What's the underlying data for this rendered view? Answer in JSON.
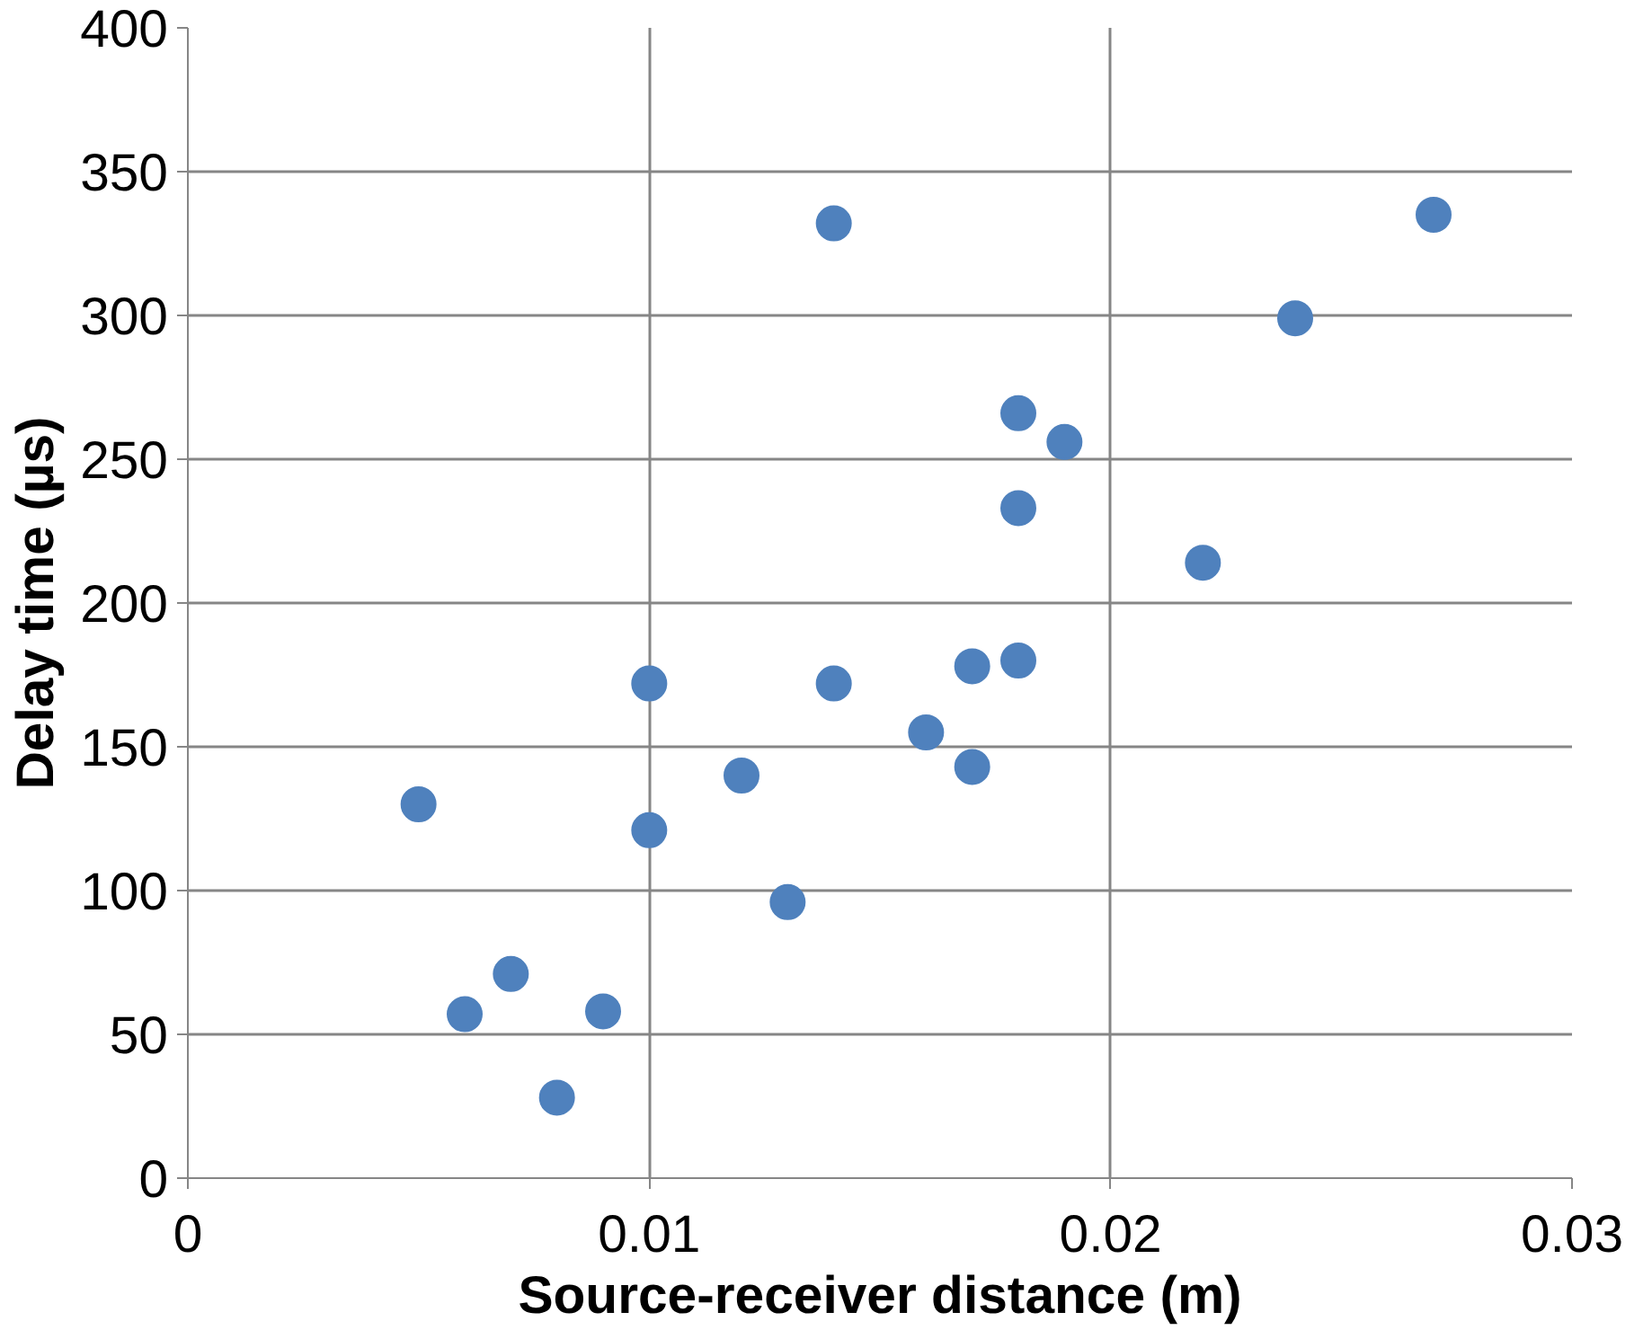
{
  "chart_data": {
    "type": "scatter",
    "xlabel": "Source-receiver distance (m)",
    "ylabel": "Delay time (µs)",
    "x": [
      0.005,
      0.006,
      0.007,
      0.008,
      0.009,
      0.01,
      0.01,
      0.012,
      0.013,
      0.014,
      0.014,
      0.016,
      0.017,
      0.017,
      0.018,
      0.018,
      0.018,
      0.019,
      0.022,
      0.024,
      0.027
    ],
    "series": [
      {
        "color": "#4f81bd",
        "values": [
          130,
          57,
          71,
          28,
          58,
          172,
          121,
          140,
          96,
          332,
          172,
          155,
          178,
          143,
          266,
          233,
          180,
          256,
          214,
          299,
          335
        ]
      }
    ],
    "xlim": [
      0,
      0.03
    ],
    "xticks": [
      0,
      0.01,
      0.02,
      0.03
    ],
    "ylim": [
      0,
      400
    ],
    "yticks": [
      0,
      50,
      100,
      150,
      200,
      250,
      300,
      350,
      400
    ],
    "grid": true,
    "marker": "circle"
  }
}
